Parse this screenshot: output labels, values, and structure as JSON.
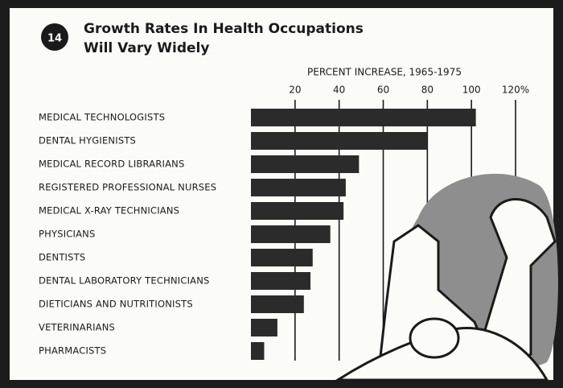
{
  "chart_data": {
    "type": "bar",
    "orientation": "horizontal",
    "chart_number": "14",
    "title": [
      "Growth Rates In Health Occupations",
      "Will Vary Widely"
    ],
    "x_label": "PERCENT INCREASE, 1965-1975",
    "categories": [
      "MEDICAL TECHNOLOGISTS",
      "DENTAL HYGIENISTS",
      "MEDICAL RECORD LIBRARIANS",
      "REGISTERED PROFESSIONAL NURSES",
      "MEDICAL X-RAY TECHNICIANS",
      "PHYSICIANS",
      "DENTISTS",
      "DENTAL LABORATORY TECHNICIANS",
      "DIETICIANS AND NUTRITIONISTS",
      "VETERINARIANS",
      "PHARMACISTS"
    ],
    "values": [
      102,
      80,
      49,
      43,
      42,
      36,
      28,
      27,
      24,
      12,
      6
    ],
    "color": "#2b2b2b",
    "xlim": [
      0,
      120
    ],
    "xticks": [
      20,
      40,
      60,
      80,
      100,
      {
        "value": 120,
        "label": "120%"
      }
    ],
    "grid": true
  }
}
